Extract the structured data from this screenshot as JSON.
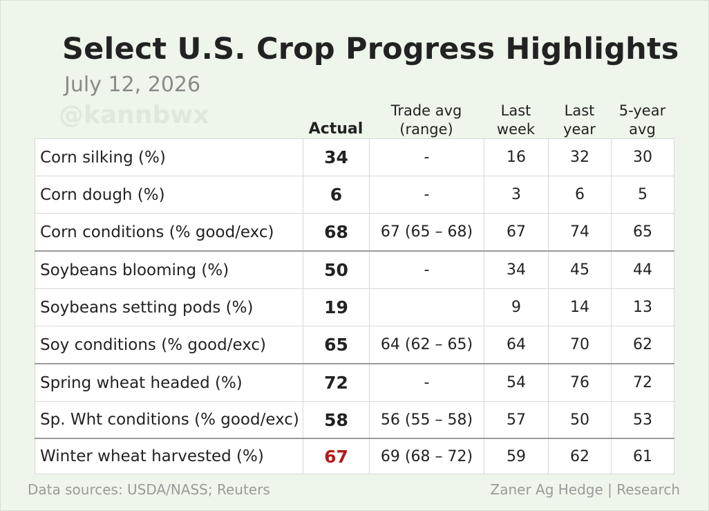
{
  "title": "Select U.S. Crop Progress Highlights",
  "date": "July 12, 2026",
  "watermark": "@kannbwx",
  "headers": {
    "actual": "Actual",
    "trade_line1": "Trade avg",
    "trade_line2": "(range)",
    "lastweek_line1": "Last",
    "lastweek_line2": "week",
    "lastyear_line1": "Last",
    "lastyear_line2": "year",
    "fiveyear_line1": "5-year",
    "fiveyear_line2": "avg"
  },
  "colors": {
    "background": "#eef5ea",
    "highlight_red": "#b31b1b",
    "text": "#222222",
    "muted": "#9a9a9a"
  },
  "chart_data": {
    "type": "table",
    "title": "Select U.S. Crop Progress Highlights",
    "subtitle": "July 12, 2026",
    "columns": [
      "",
      "Actual",
      "Trade avg (range)",
      "Last week",
      "Last year",
      "5-year avg"
    ],
    "rows": [
      {
        "label": "Corn silking (%)",
        "actual": "34",
        "trade": "-",
        "last_week": "16",
        "last_year": "32",
        "five_year": "30"
      },
      {
        "label": "Corn dough (%)",
        "actual": "6",
        "trade": "-",
        "last_week": "3",
        "last_year": "6",
        "five_year": "5"
      },
      {
        "label": "Corn conditions (% good/exc)",
        "actual": "68",
        "trade": "67 (65 – 68)",
        "last_week": "67",
        "last_year": "74",
        "five_year": "65"
      },
      {
        "label": "Soybeans blooming (%)",
        "actual": "50",
        "trade": "-",
        "last_week": "34",
        "last_year": "45",
        "five_year": "44"
      },
      {
        "label": "Soybeans setting pods (%)",
        "actual": "19",
        "trade": "",
        "last_week": "9",
        "last_year": "14",
        "five_year": "13"
      },
      {
        "label": "Soy conditions (% good/exc)",
        "actual": "65",
        "trade": "64 (62 – 65)",
        "last_week": "64",
        "last_year": "70",
        "five_year": "62"
      },
      {
        "label": "Spring wheat headed (%)",
        "actual": "72",
        "trade": "-",
        "last_week": "54",
        "last_year": "76",
        "five_year": "72"
      },
      {
        "label": "Sp. Wht conditions (% good/exc)",
        "actual": "58",
        "trade": "56 (55 – 58)",
        "last_week": "57",
        "last_year": "50",
        "five_year": "53"
      },
      {
        "label": "Winter wheat harvested (%)",
        "actual": "67",
        "trade": "69 (68 – 72)",
        "last_week": "59",
        "last_year": "62",
        "five_year": "61",
        "actual_color": "#b31b1b"
      }
    ],
    "group_breaks_after": [
      2,
      5,
      7
    ]
  },
  "footer": {
    "sources": "Data sources: USDA/NASS; Reuters",
    "credit": "Zaner Ag Hedge | Research"
  }
}
